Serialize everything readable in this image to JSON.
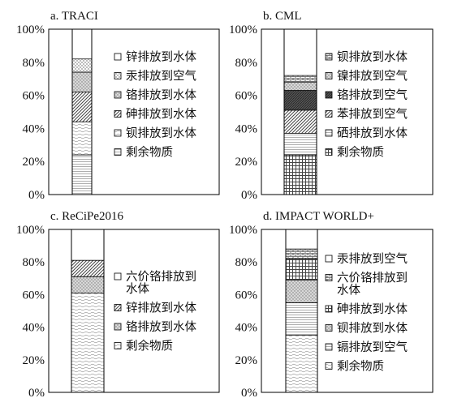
{
  "chart_data": [
    {
      "type": "bar",
      "title": "a. TRACI",
      "yticks": [
        "0%",
        "20%",
        "40%",
        "60%",
        "80%",
        "100%"
      ],
      "ylim": [
        0,
        100
      ],
      "series": [
        {
          "name": "剩余物质",
          "value": 24,
          "pattern": "hlines"
        },
        {
          "name": "钡排放到水体",
          "value": 20,
          "pattern": "wave"
        },
        {
          "name": "砷排放到水体",
          "value": 18,
          "pattern": "diag"
        },
        {
          "name": "铬排放到水体",
          "value": 12,
          "pattern": "dots"
        },
        {
          "name": "汞排放到空气",
          "value": 8,
          "pattern": "checker"
        },
        {
          "name": "锌排放到水体",
          "value": 18,
          "pattern": "blank"
        }
      ],
      "legend": [
        "锌排放到水体",
        "汞排放到空气",
        "铬排放到水体",
        "砷排放到水体",
        "钡排放到水体",
        "剩余物质"
      ]
    },
    {
      "type": "bar",
      "title": "b. CML",
      "yticks": [
        "0%",
        "20%",
        "40%",
        "60%",
        "80%",
        "100%"
      ],
      "ylim": [
        0,
        100
      ],
      "series": [
        {
          "name": "剩余物质",
          "value": 24,
          "pattern": "grid"
        },
        {
          "name": "硒排放到水体",
          "value": 13,
          "pattern": "hlines"
        },
        {
          "name": "苯排放到空气",
          "value": 14,
          "pattern": "diag"
        },
        {
          "name": "铬排放到空气",
          "value": 12,
          "pattern": "dense"
        },
        {
          "name": "镍排放到空气",
          "value": 5,
          "pattern": "dots"
        },
        {
          "name": "钡排放到水体",
          "value": 4,
          "pattern": "bricks"
        },
        {
          "name": "",
          "value": 28,
          "pattern": "blank"
        }
      ],
      "legend": [
        "钡排放到水体",
        "镍排放到空气",
        "铬排放到空气",
        "苯排放到空气",
        "硒排放到水体",
        "剩余物质"
      ]
    },
    {
      "type": "bar",
      "title": "c. ReCiPe2016",
      "yticks": [
        "0%",
        "20%",
        "40%",
        "60%",
        "80%",
        "100%"
      ],
      "ylim": [
        0,
        100
      ],
      "series": [
        {
          "name": "剩余物质",
          "value": 61,
          "pattern": "wave"
        },
        {
          "name": "铬排放到水体",
          "value": 10,
          "pattern": "dots"
        },
        {
          "name": "锌排放到水体",
          "value": 10,
          "pattern": "diag"
        },
        {
          "name": "六价铬排放到水体",
          "value": 19,
          "pattern": "blank"
        }
      ],
      "legend": [
        "六价铬排放到水体",
        "锌排放到水体",
        "铬排放到水体",
        "剩余物质"
      ]
    },
    {
      "type": "bar",
      "title": "d. IMPACT WORLD+",
      "yticks": [
        "0%",
        "20%",
        "40%",
        "60%",
        "80%",
        "100%"
      ],
      "ylim": [
        0,
        100
      ],
      "series": [
        {
          "name": "剩余物质",
          "value": 35,
          "pattern": "wave"
        },
        {
          "name": "镉排放到空气",
          "value": 20,
          "pattern": "hlines"
        },
        {
          "name": "钡排放到水体",
          "value": 14,
          "pattern": "dots"
        },
        {
          "name": "砷排放到水体",
          "value": 13,
          "pattern": "grid"
        },
        {
          "name": "六价铬排放到水体",
          "value": 6,
          "pattern": "bricks"
        },
        {
          "name": "汞排放到空气",
          "value": 12,
          "pattern": "blank"
        }
      ],
      "legend": [
        "汞排放到空气",
        "六价铬排放到水体",
        "砷排放到水体",
        "钡排放到水体",
        "镉排放到空气",
        "剩余物质"
      ]
    }
  ]
}
